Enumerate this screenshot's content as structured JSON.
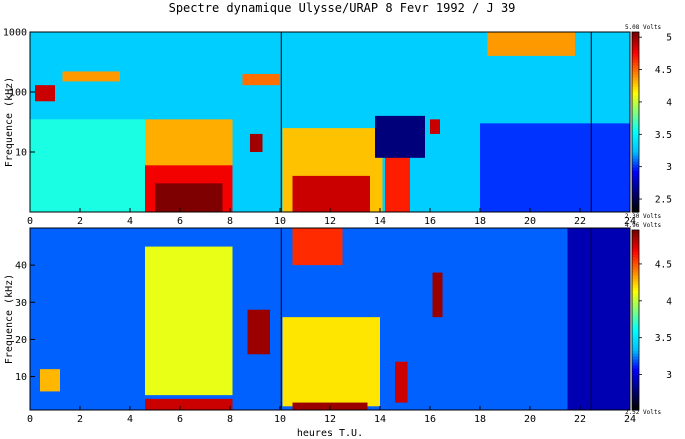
{
  "title": "Spectre dynamique Ulysse/URAP   8 Fevr 1992 / J 39",
  "xlabel": "heures T.U.",
  "colormap": [
    "#000000",
    "#00007f",
    "#0000ff",
    "#00bfff",
    "#00ffff",
    "#7fff7f",
    "#ffff00",
    "#ff7f00",
    "#ff0000",
    "#7f0000"
  ],
  "chart_data": [
    {
      "type": "heatmap",
      "panel": "top",
      "title": "Spectre dynamique Ulysse/URAP   8 Fevr 1992 / J 39",
      "xlabel": "",
      "ylabel": "Frequence (kHz)",
      "x_range": [
        0,
        24
      ],
      "x_ticks": [
        "0",
        "2",
        "4",
        "6",
        "8",
        "10",
        "12",
        "14",
        "16",
        "18",
        "20",
        "22",
        "24"
      ],
      "y_scale": "log",
      "y_range": [
        1,
        1000
      ],
      "y_ticks": [
        "10",
        "100",
        "1000"
      ],
      "colorbar": {
        "min_label": "2.30 Volts",
        "max_label": "5.08 Volts",
        "min": 2.3,
        "max": 5.08,
        "ticks": [
          "2.5",
          "3",
          "3.5",
          "4",
          "4.5",
          "5"
        ],
        "tick_values": [
          2.5,
          3,
          3.5,
          4,
          4.5,
          5
        ]
      },
      "vertical_lines_hours": [
        10.05,
        22.45
      ],
      "features": [
        {
          "x0": 0,
          "x1": 24,
          "y0": 1,
          "y1": 1000,
          "v": 3.3,
          "note": "background"
        },
        {
          "x0": 0,
          "x1": 4.6,
          "y0": 1,
          "y1": 35,
          "v": 3.6
        },
        {
          "x0": 4.6,
          "x1": 8.1,
          "y0": 2,
          "y1": 35,
          "v": 4.35
        },
        {
          "x0": 4.6,
          "x1": 8.1,
          "y0": 1,
          "y1": 6,
          "v": 4.8
        },
        {
          "x0": 5.0,
          "x1": 7.7,
          "y0": 1,
          "y1": 3,
          "v": 5.08
        },
        {
          "x0": 10.1,
          "x1": 14.1,
          "y0": 1,
          "y1": 25,
          "v": 4.3
        },
        {
          "x0": 10.5,
          "x1": 13.6,
          "y0": 1,
          "y1": 4,
          "v": 4.9
        },
        {
          "x0": 14.2,
          "x1": 15.2,
          "y0": 1,
          "y1": 20,
          "v": 4.7
        },
        {
          "x0": 13.8,
          "x1": 15.8,
          "y0": 8,
          "y1": 40,
          "v": 2.6
        },
        {
          "x0": 18.0,
          "x1": 24,
          "y0": 1,
          "y1": 30,
          "v": 3.0
        },
        {
          "x0": 0.2,
          "x1": 1.0,
          "y0": 70,
          "y1": 130,
          "v": 4.9
        },
        {
          "x0": 1.3,
          "x1": 3.6,
          "y0": 150,
          "y1": 220,
          "v": 4.4
        },
        {
          "x0": 8.5,
          "x1": 10.0,
          "y0": 130,
          "y1": 200,
          "v": 4.5
        },
        {
          "x0": 18.3,
          "x1": 21.8,
          "y0": 400,
          "y1": 1000,
          "v": 4.4
        },
        {
          "x0": 16.0,
          "x1": 16.4,
          "y0": 20,
          "y1": 35,
          "v": 4.9
        },
        {
          "x0": 8.8,
          "x1": 9.3,
          "y0": 10,
          "y1": 20,
          "v": 5.0
        }
      ]
    },
    {
      "type": "heatmap",
      "panel": "bottom",
      "xlabel": "heures T.U.",
      "ylabel": "Frequence (kHz)",
      "x_range": [
        0,
        24
      ],
      "x_ticks": [
        "0",
        "2",
        "4",
        "6",
        "8",
        "10",
        "12",
        "14",
        "16",
        "18",
        "20",
        "22",
        "24"
      ],
      "y_scale": "linear",
      "y_range": [
        1,
        50
      ],
      "y_ticks": [
        "10",
        "20",
        "30",
        "40"
      ],
      "colorbar": {
        "min_label": "2.52 Volts",
        "max_label": "4.96 Volts",
        "min": 2.52,
        "max": 4.96,
        "ticks": [
          "3",
          "3.5",
          "4",
          "4.5"
        ],
        "tick_values": [
          3,
          3.5,
          4,
          4.5
        ]
      },
      "vertical_lines_hours": [
        10.05,
        22.45
      ],
      "features": [
        {
          "x0": 0,
          "x1": 24,
          "y0": 1,
          "y1": 50,
          "v": 3.2,
          "note": "background"
        },
        {
          "x0": 4.6,
          "x1": 8.1,
          "y0": 5,
          "y1": 45,
          "v": 4.1
        },
        {
          "x0": 4.6,
          "x1": 8.1,
          "y0": 1,
          "y1": 4,
          "v": 4.8
        },
        {
          "x0": 10.1,
          "x1": 14.0,
          "y0": 2,
          "y1": 26,
          "v": 4.2
        },
        {
          "x0": 10.5,
          "x1": 13.5,
          "y0": 1,
          "y1": 3,
          "v": 4.9
        },
        {
          "x0": 10.5,
          "x1": 12.5,
          "y0": 40,
          "y1": 50,
          "v": 4.6
        },
        {
          "x0": 8.7,
          "x1": 9.6,
          "y0": 16,
          "y1": 28,
          "v": 4.9
        },
        {
          "x0": 16.1,
          "x1": 16.5,
          "y0": 26,
          "y1": 38,
          "v": 4.9
        },
        {
          "x0": 14.6,
          "x1": 15.1,
          "y0": 3,
          "y1": 14,
          "v": 4.8
        },
        {
          "x0": 0.4,
          "x1": 1.2,
          "y0": 6,
          "y1": 12,
          "v": 4.3
        },
        {
          "x0": 21.5,
          "x1": 24,
          "y0": 1,
          "y1": 50,
          "v": 2.9
        }
      ]
    }
  ]
}
